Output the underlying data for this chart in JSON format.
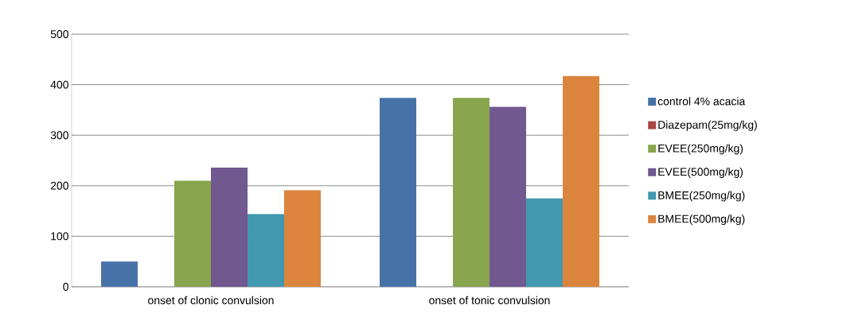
{
  "chart_data": {
    "type": "bar",
    "categories": [
      "onset of clonic convulsion",
      "onset of tonic convulsion"
    ],
    "series": [
      {
        "name": "control 4% acacia",
        "color": "#4672a8",
        "values": [
          50,
          374
        ]
      },
      {
        "name": "Diazepam(25mg/kg)",
        "color": "#aa4643",
        "values": [
          0,
          0
        ]
      },
      {
        "name": "EVEE(250mg/kg)",
        "color": "#89a54e",
        "values": [
          210,
          374
        ]
      },
      {
        "name": "EVEE(500mg/kg)",
        "color": "#71588f",
        "values": [
          236,
          356
        ]
      },
      {
        "name": "BMEE(250mg/kg)",
        "color": "#4198af",
        "values": [
          144,
          175
        ]
      },
      {
        "name": "BMEE(500mg/kg)",
        "color": "#db843d",
        "values": [
          191,
          417
        ]
      }
    ],
    "ylim": [
      0,
      500
    ],
    "yticks": [
      0,
      100,
      200,
      300,
      400,
      500
    ],
    "grid": "y",
    "legend": "right"
  }
}
